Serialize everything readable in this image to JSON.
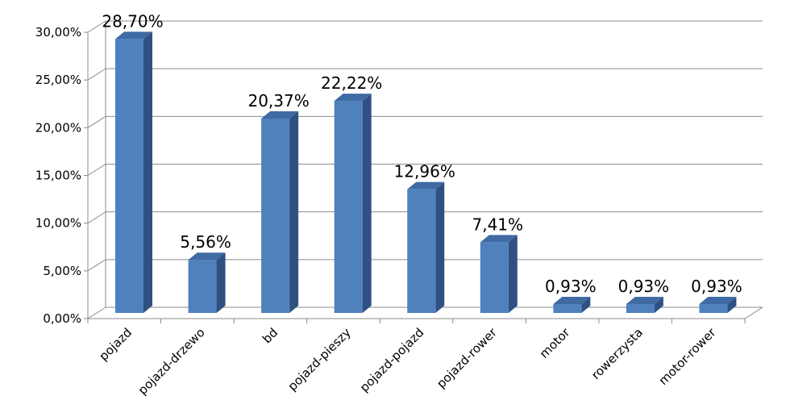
{
  "chart_data": {
    "type": "bar",
    "style": "3d-column",
    "categories": [
      "pojazd",
      "pojazd-drzewo",
      "bd",
      "pojazd-pieszy",
      "pojazd-pojazd",
      "pojazd-rower",
      "motor",
      "rowerzysta",
      "motor-rower"
    ],
    "values": [
      28.7,
      5.56,
      20.37,
      22.22,
      12.96,
      7.41,
      0.93,
      0.93,
      0.93
    ],
    "data_labels": [
      "28,70%",
      "5,56%",
      "20,37%",
      "22,22%",
      "12,96%",
      "7,41%",
      "0,93%",
      "0,93%",
      "0,93%"
    ],
    "y_ticks": [
      "0,00%",
      "5,00%",
      "10,00%",
      "15,00%",
      "20,00%",
      "25,00%",
      "30,00%"
    ],
    "ylim": [
      0,
      30
    ],
    "title": "",
    "xlabel": "",
    "ylabel": "",
    "grid": true,
    "legend": "none",
    "colors": {
      "bar_front": "#4F81BD",
      "bar_side": "#2F5182",
      "bar_top": "#3F6AA3",
      "grid": "#8C8C8C"
    }
  }
}
